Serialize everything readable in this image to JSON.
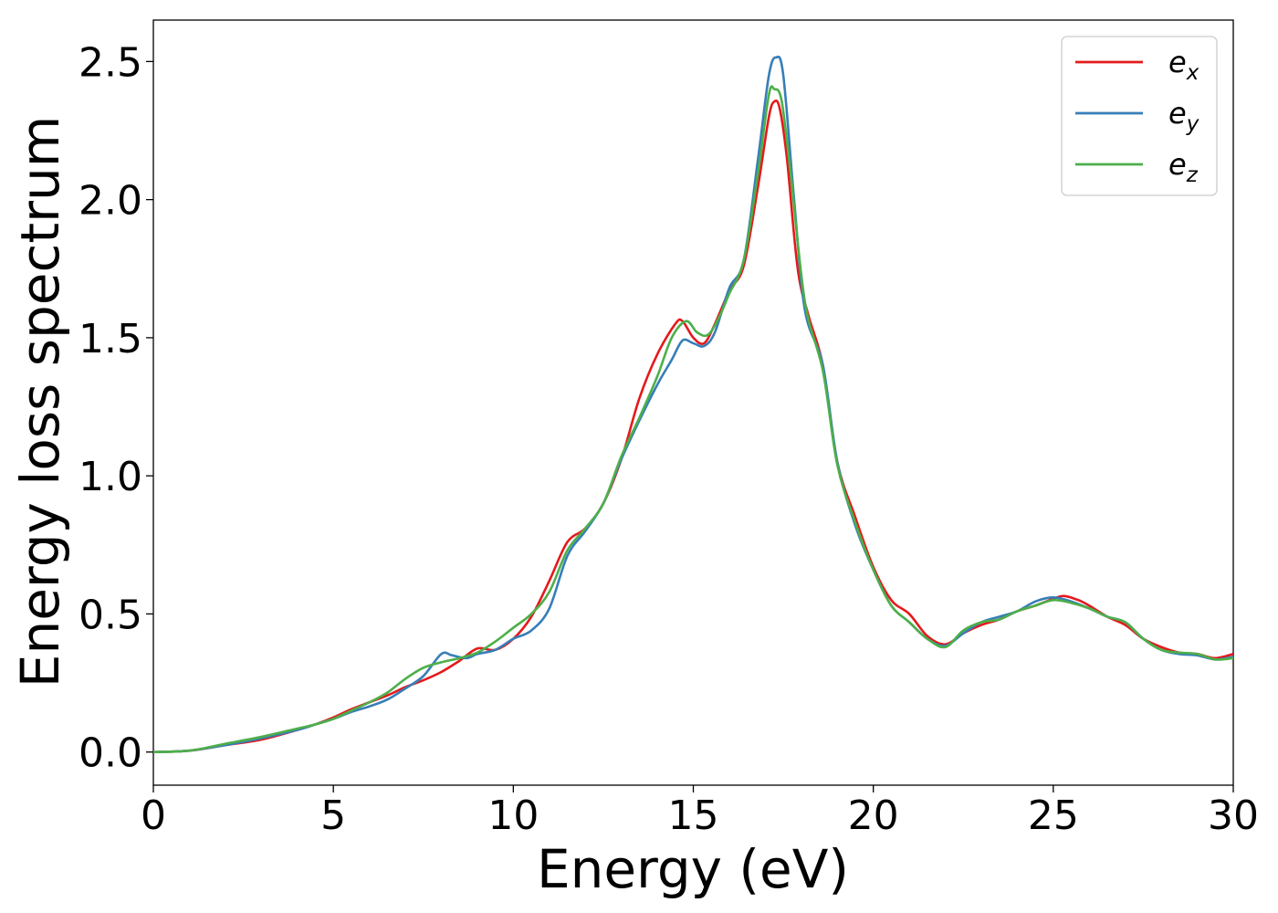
{
  "chart_data": {
    "type": "line",
    "title": "",
    "xlabel": "Energy (eV)",
    "ylabel": "Energy loss spectrum",
    "xlim": [
      0,
      30
    ],
    "ylim": [
      -0.12,
      2.65
    ],
    "xticks": [
      0,
      5,
      10,
      15,
      20,
      25,
      30
    ],
    "xtick_labels": [
      "0",
      "5",
      "10",
      "15",
      "20",
      "25",
      "30"
    ],
    "yticks": [
      0.0,
      0.5,
      1.0,
      1.5,
      2.0,
      2.5
    ],
    "ytick_labels": [
      "0.0",
      "0.5",
      "1.0",
      "1.5",
      "2.0",
      "2.5"
    ],
    "grid": false,
    "legend_position": "top-right",
    "series": [
      {
        "name": "e_x",
        "label_base": "e",
        "label_sub": "x",
        "color": "#e41a1c",
        "points": [
          [
            0,
            0
          ],
          [
            1,
            0.005
          ],
          [
            2,
            0.025
          ],
          [
            3,
            0.045
          ],
          [
            4,
            0.08
          ],
          [
            4.5,
            0.1
          ],
          [
            5,
            0.125
          ],
          [
            5.5,
            0.155
          ],
          [
            6,
            0.18
          ],
          [
            6.5,
            0.205
          ],
          [
            7,
            0.235
          ],
          [
            7.5,
            0.26
          ],
          [
            8,
            0.29
          ],
          [
            8.5,
            0.33
          ],
          [
            9,
            0.375
          ],
          [
            9.5,
            0.37
          ],
          [
            10,
            0.41
          ],
          [
            10.5,
            0.49
          ],
          [
            11,
            0.62
          ],
          [
            11.5,
            0.76
          ],
          [
            12,
            0.81
          ],
          [
            12.5,
            0.9
          ],
          [
            13,
            1.06
          ],
          [
            13.5,
            1.28
          ],
          [
            14,
            1.44
          ],
          [
            14.5,
            1.55
          ],
          [
            14.7,
            1.56
          ],
          [
            15,
            1.5
          ],
          [
            15.3,
            1.48
          ],
          [
            15.6,
            1.55
          ],
          [
            16,
            1.67
          ],
          [
            16.4,
            1.76
          ],
          [
            16.8,
            2.05
          ],
          [
            17.1,
            2.3
          ],
          [
            17.25,
            2.355
          ],
          [
            17.4,
            2.33
          ],
          [
            17.6,
            2.15
          ],
          [
            17.9,
            1.75
          ],
          [
            18.2,
            1.58
          ],
          [
            18.6,
            1.4
          ],
          [
            19,
            1.05
          ],
          [
            19.5,
            0.85
          ],
          [
            20,
            0.67
          ],
          [
            20.5,
            0.55
          ],
          [
            21,
            0.5
          ],
          [
            21.5,
            0.42
          ],
          [
            22,
            0.39
          ],
          [
            22.5,
            0.43
          ],
          [
            23,
            0.46
          ],
          [
            23.5,
            0.48
          ],
          [
            24,
            0.51
          ],
          [
            24.5,
            0.53
          ],
          [
            25,
            0.555
          ],
          [
            25.3,
            0.565
          ],
          [
            25.7,
            0.55
          ],
          [
            26,
            0.53
          ],
          [
            26.5,
            0.49
          ],
          [
            27,
            0.46
          ],
          [
            27.5,
            0.41
          ],
          [
            28,
            0.38
          ],
          [
            28.5,
            0.36
          ],
          [
            29,
            0.355
          ],
          [
            29.5,
            0.34
          ],
          [
            30,
            0.355
          ]
        ]
      },
      {
        "name": "e_y",
        "label_base": "e",
        "label_sub": "y",
        "color": "#377eb8",
        "points": [
          [
            0,
            0
          ],
          [
            1,
            0.005
          ],
          [
            2,
            0.025
          ],
          [
            3,
            0.05
          ],
          [
            4,
            0.08
          ],
          [
            4.5,
            0.1
          ],
          [
            5,
            0.12
          ],
          [
            5.5,
            0.145
          ],
          [
            6,
            0.165
          ],
          [
            6.5,
            0.19
          ],
          [
            7,
            0.23
          ],
          [
            7.5,
            0.275
          ],
          [
            8,
            0.355
          ],
          [
            8.3,
            0.35
          ],
          [
            8.7,
            0.34
          ],
          [
            9,
            0.355
          ],
          [
            9.5,
            0.37
          ],
          [
            10,
            0.41
          ],
          [
            10.5,
            0.44
          ],
          [
            11,
            0.52
          ],
          [
            11.5,
            0.71
          ],
          [
            12,
            0.8
          ],
          [
            12.5,
            0.9
          ],
          [
            13,
            1.06
          ],
          [
            13.5,
            1.2
          ],
          [
            14,
            1.33
          ],
          [
            14.4,
            1.42
          ],
          [
            14.7,
            1.49
          ],
          [
            15,
            1.48
          ],
          [
            15.3,
            1.47
          ],
          [
            15.6,
            1.52
          ],
          [
            16,
            1.68
          ],
          [
            16.4,
            1.78
          ],
          [
            16.8,
            2.15
          ],
          [
            17.1,
            2.45
          ],
          [
            17.3,
            2.515
          ],
          [
            17.5,
            2.45
          ],
          [
            17.8,
            2.0
          ],
          [
            18.1,
            1.6
          ],
          [
            18.6,
            1.4
          ],
          [
            19,
            1.05
          ],
          [
            19.5,
            0.82
          ],
          [
            20,
            0.66
          ],
          [
            20.5,
            0.53
          ],
          [
            21,
            0.47
          ],
          [
            21.5,
            0.41
          ],
          [
            22,
            0.385
          ],
          [
            22.5,
            0.43
          ],
          [
            23,
            0.47
          ],
          [
            23.5,
            0.49
          ],
          [
            24,
            0.51
          ],
          [
            24.5,
            0.545
          ],
          [
            25,
            0.56
          ],
          [
            25.5,
            0.545
          ],
          [
            26,
            0.52
          ],
          [
            26.5,
            0.49
          ],
          [
            27,
            0.47
          ],
          [
            27.5,
            0.41
          ],
          [
            28,
            0.37
          ],
          [
            28.5,
            0.355
          ],
          [
            29,
            0.35
          ],
          [
            29.5,
            0.335
          ],
          [
            30,
            0.345
          ]
        ]
      },
      {
        "name": "e_z",
        "label_base": "e",
        "label_sub": "z",
        "color": "#4daf4a",
        "points": [
          [
            0,
            0
          ],
          [
            1,
            0.005
          ],
          [
            2,
            0.03
          ],
          [
            3,
            0.055
          ],
          [
            4,
            0.085
          ],
          [
            4.5,
            0.1
          ],
          [
            5,
            0.12
          ],
          [
            5.5,
            0.15
          ],
          [
            6,
            0.18
          ],
          [
            6.5,
            0.215
          ],
          [
            7,
            0.265
          ],
          [
            7.5,
            0.305
          ],
          [
            8,
            0.325
          ],
          [
            8.5,
            0.34
          ],
          [
            9,
            0.36
          ],
          [
            9.5,
            0.4
          ],
          [
            10,
            0.45
          ],
          [
            10.5,
            0.5
          ],
          [
            11,
            0.58
          ],
          [
            11.5,
            0.73
          ],
          [
            12,
            0.81
          ],
          [
            12.5,
            0.9
          ],
          [
            13,
            1.07
          ],
          [
            13.5,
            1.21
          ],
          [
            14,
            1.36
          ],
          [
            14.4,
            1.5
          ],
          [
            14.8,
            1.56
          ],
          [
            15.1,
            1.52
          ],
          [
            15.4,
            1.51
          ],
          [
            15.7,
            1.57
          ],
          [
            16,
            1.66
          ],
          [
            16.4,
            1.78
          ],
          [
            16.8,
            2.1
          ],
          [
            17.1,
            2.38
          ],
          [
            17.25,
            2.4
          ],
          [
            17.45,
            2.36
          ],
          [
            17.7,
            2.1
          ],
          [
            18.1,
            1.63
          ],
          [
            18.6,
            1.38
          ],
          [
            19,
            1.04
          ],
          [
            19.5,
            0.83
          ],
          [
            20,
            0.66
          ],
          [
            20.5,
            0.53
          ],
          [
            21,
            0.47
          ],
          [
            21.5,
            0.41
          ],
          [
            22,
            0.38
          ],
          [
            22.5,
            0.44
          ],
          [
            23,
            0.47
          ],
          [
            23.5,
            0.48
          ],
          [
            24,
            0.51
          ],
          [
            24.5,
            0.53
          ],
          [
            25,
            0.55
          ],
          [
            25.5,
            0.54
          ],
          [
            26,
            0.52
          ],
          [
            26.5,
            0.49
          ],
          [
            27,
            0.47
          ],
          [
            27.5,
            0.41
          ],
          [
            28,
            0.37
          ],
          [
            28.5,
            0.36
          ],
          [
            29,
            0.355
          ],
          [
            29.5,
            0.335
          ],
          [
            30,
            0.34
          ]
        ]
      }
    ]
  }
}
